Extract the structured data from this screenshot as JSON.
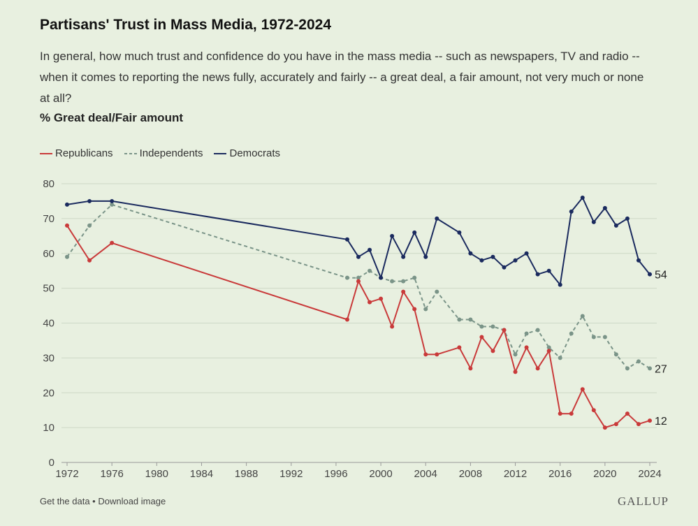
{
  "title": "Partisans' Trust in Mass Media, 1972-2024",
  "question": "In general, how much trust and confidence do you have in the mass media -- such as newspapers, TV and radio -- when it comes to reporting the news fully, accurately and fairly -- a great deal, a fair amount, not very much or none at all?",
  "ylabel": "% Great deal/Fair amount",
  "footer": {
    "get_data": "Get the data",
    "separator": " • ",
    "download": "Download image"
  },
  "logo": "GALLUP",
  "colors": {
    "republicans": "#c93a3a",
    "independents": "#7a9488",
    "democrats": "#1a2a5e",
    "grid": "#cdd8c6",
    "axis": "#999999",
    "tick_text": "#444444"
  },
  "chart_data": {
    "type": "line",
    "title": "Partisans' Trust in Mass Media, 1972-2024",
    "ylabel": "% Great deal/Fair amount",
    "xlabel": "",
    "xlim": [
      1972,
      2024
    ],
    "ylim": [
      0,
      80
    ],
    "x_ticks": [
      1972,
      1976,
      1980,
      1984,
      1988,
      1992,
      1996,
      2000,
      2004,
      2008,
      2012,
      2016,
      2020,
      2024
    ],
    "y_ticks": [
      0,
      10,
      20,
      30,
      40,
      50,
      60,
      70,
      80
    ],
    "grid": "horizontal",
    "legend_position": "top-left",
    "series": [
      {
        "name": "Republicans",
        "style": "solid",
        "end_label": "12",
        "x": [
          1972,
          1974,
          1976,
          1997,
          1998,
          1999,
          2000,
          2001,
          2002,
          2003,
          2004,
          2005,
          2007,
          2008,
          2009,
          2010,
          2011,
          2012,
          2013,
          2014,
          2015,
          2016,
          2017,
          2018,
          2019,
          2020,
          2021,
          2022,
          2023,
          2024
        ],
        "values": [
          68,
          58,
          63,
          41,
          52,
          46,
          47,
          39,
          49,
          44,
          31,
          31,
          33,
          27,
          36,
          32,
          38,
          26,
          33,
          27,
          32,
          14,
          14,
          21,
          15,
          10,
          11,
          14,
          11,
          12
        ]
      },
      {
        "name": "Independents",
        "style": "dashed",
        "end_label": "27",
        "x": [
          1972,
          1974,
          1976,
          1997,
          1998,
          1999,
          2000,
          2001,
          2002,
          2003,
          2004,
          2005,
          2007,
          2008,
          2009,
          2010,
          2011,
          2012,
          2013,
          2014,
          2015,
          2016,
          2017,
          2018,
          2019,
          2020,
          2021,
          2022,
          2023,
          2024
        ],
        "values": [
          59,
          68,
          74,
          53,
          53,
          55,
          53,
          52,
          52,
          53,
          44,
          49,
          41,
          41,
          39,
          39,
          38,
          31,
          37,
          38,
          33,
          30,
          37,
          42,
          36,
          36,
          31,
          27,
          29,
          27
        ]
      },
      {
        "name": "Democrats",
        "style": "solid",
        "end_label": "54",
        "x": [
          1972,
          1974,
          1976,
          1997,
          1998,
          1999,
          2000,
          2001,
          2002,
          2003,
          2004,
          2005,
          2007,
          2008,
          2009,
          2010,
          2011,
          2012,
          2013,
          2014,
          2015,
          2016,
          2017,
          2018,
          2019,
          2020,
          2021,
          2022,
          2023,
          2024
        ],
        "values": [
          74,
          75,
          75,
          64,
          59,
          61,
          53,
          65,
          59,
          66,
          59,
          70,
          66,
          60,
          58,
          59,
          56,
          58,
          60,
          54,
          55,
          51,
          72,
          76,
          69,
          73,
          68,
          70,
          58,
          54
        ]
      }
    ]
  }
}
